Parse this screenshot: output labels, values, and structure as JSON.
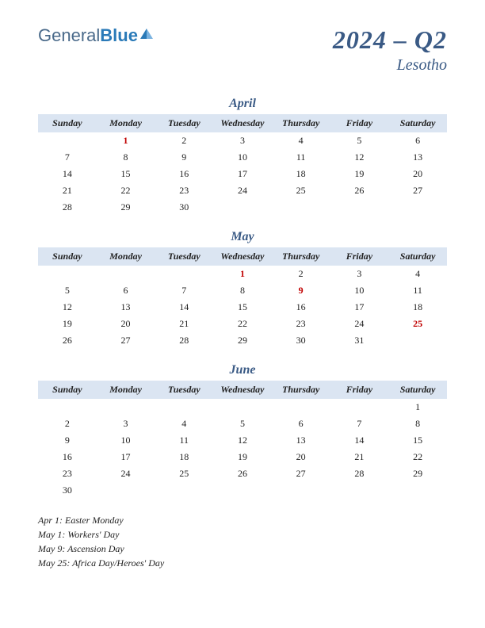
{
  "logo": {
    "part1": "General",
    "part2": "Blue"
  },
  "title": {
    "main": "2024 – Q2",
    "sub": "Lesotho"
  },
  "weekdays": [
    "Sunday",
    "Monday",
    "Tuesday",
    "Wednesday",
    "Thursday",
    "Friday",
    "Saturday"
  ],
  "header_bg": "#dbe5f2",
  "accent_color": "#3a5a85",
  "holiday_color": "#c00000",
  "months": [
    {
      "name": "April",
      "weeks": [
        [
          {
            "d": ""
          },
          {
            "d": "1",
            "h": true
          },
          {
            "d": "2"
          },
          {
            "d": "3"
          },
          {
            "d": "4"
          },
          {
            "d": "5"
          },
          {
            "d": "6"
          }
        ],
        [
          {
            "d": "7"
          },
          {
            "d": "8"
          },
          {
            "d": "9"
          },
          {
            "d": "10"
          },
          {
            "d": "11"
          },
          {
            "d": "12"
          },
          {
            "d": "13"
          }
        ],
        [
          {
            "d": "14"
          },
          {
            "d": "15"
          },
          {
            "d": "16"
          },
          {
            "d": "17"
          },
          {
            "d": "18"
          },
          {
            "d": "19"
          },
          {
            "d": "20"
          }
        ],
        [
          {
            "d": "21"
          },
          {
            "d": "22"
          },
          {
            "d": "23"
          },
          {
            "d": "24"
          },
          {
            "d": "25"
          },
          {
            "d": "26"
          },
          {
            "d": "27"
          }
        ],
        [
          {
            "d": "28"
          },
          {
            "d": "29"
          },
          {
            "d": "30"
          },
          {
            "d": ""
          },
          {
            "d": ""
          },
          {
            "d": ""
          },
          {
            "d": ""
          }
        ]
      ]
    },
    {
      "name": "May",
      "weeks": [
        [
          {
            "d": ""
          },
          {
            "d": ""
          },
          {
            "d": ""
          },
          {
            "d": "1",
            "h": true
          },
          {
            "d": "2"
          },
          {
            "d": "3"
          },
          {
            "d": "4"
          }
        ],
        [
          {
            "d": "5"
          },
          {
            "d": "6"
          },
          {
            "d": "7"
          },
          {
            "d": "8"
          },
          {
            "d": "9",
            "h": true
          },
          {
            "d": "10"
          },
          {
            "d": "11"
          }
        ],
        [
          {
            "d": "12"
          },
          {
            "d": "13"
          },
          {
            "d": "14"
          },
          {
            "d": "15"
          },
          {
            "d": "16"
          },
          {
            "d": "17"
          },
          {
            "d": "18"
          }
        ],
        [
          {
            "d": "19"
          },
          {
            "d": "20"
          },
          {
            "d": "21"
          },
          {
            "d": "22"
          },
          {
            "d": "23"
          },
          {
            "d": "24"
          },
          {
            "d": "25",
            "h": true
          }
        ],
        [
          {
            "d": "26"
          },
          {
            "d": "27"
          },
          {
            "d": "28"
          },
          {
            "d": "29"
          },
          {
            "d": "30"
          },
          {
            "d": "31"
          },
          {
            "d": ""
          }
        ]
      ]
    },
    {
      "name": "June",
      "weeks": [
        [
          {
            "d": ""
          },
          {
            "d": ""
          },
          {
            "d": ""
          },
          {
            "d": ""
          },
          {
            "d": ""
          },
          {
            "d": ""
          },
          {
            "d": "1"
          }
        ],
        [
          {
            "d": "2"
          },
          {
            "d": "3"
          },
          {
            "d": "4"
          },
          {
            "d": "5"
          },
          {
            "d": "6"
          },
          {
            "d": "7"
          },
          {
            "d": "8"
          }
        ],
        [
          {
            "d": "9"
          },
          {
            "d": "10"
          },
          {
            "d": "11"
          },
          {
            "d": "12"
          },
          {
            "d": "13"
          },
          {
            "d": "14"
          },
          {
            "d": "15"
          }
        ],
        [
          {
            "d": "16"
          },
          {
            "d": "17"
          },
          {
            "d": "18"
          },
          {
            "d": "19"
          },
          {
            "d": "20"
          },
          {
            "d": "21"
          },
          {
            "d": "22"
          }
        ],
        [
          {
            "d": "23"
          },
          {
            "d": "24"
          },
          {
            "d": "25"
          },
          {
            "d": "26"
          },
          {
            "d": "27"
          },
          {
            "d": "28"
          },
          {
            "d": "29"
          }
        ],
        [
          {
            "d": "30"
          },
          {
            "d": ""
          },
          {
            "d": ""
          },
          {
            "d": ""
          },
          {
            "d": ""
          },
          {
            "d": ""
          },
          {
            "d": ""
          }
        ]
      ]
    }
  ],
  "holidays_list": [
    "Apr 1: Easter Monday",
    "May 1: Workers' Day",
    "May 9: Ascension Day",
    "May 25: Africa Day/Heroes' Day"
  ]
}
